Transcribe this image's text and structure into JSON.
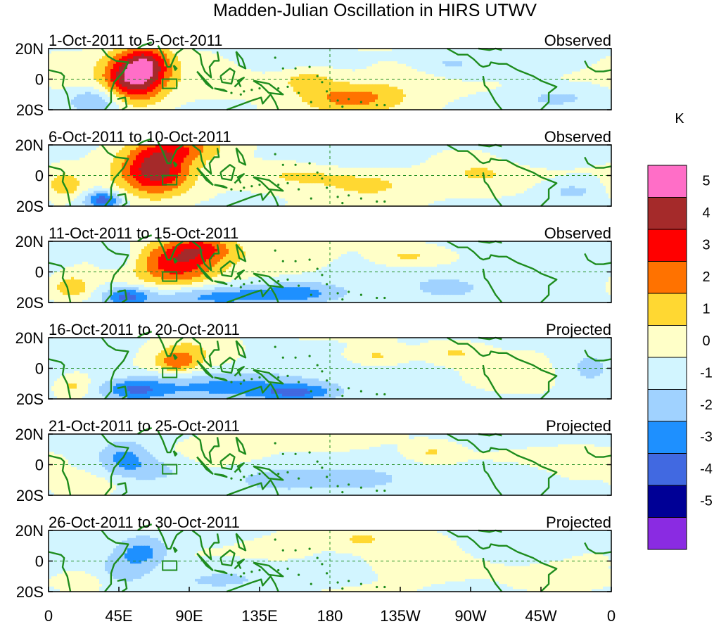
{
  "chart_data": {
    "type": "heatmap",
    "title": "Madden-Julian Oscillation in HIRS UTWV",
    "units_label": "K",
    "y_tick_labels": [
      "20N",
      "0",
      "20S"
    ],
    "x_tick_labels": [
      "0",
      "45E",
      "90E",
      "135E",
      "180",
      "135W",
      "90W",
      "45W",
      "0"
    ],
    "x_range_deg_east": [
      0,
      360
    ],
    "y_range_deg": [
      -20,
      20
    ],
    "colorbar": {
      "levels": [
        "5",
        "4",
        "3",
        "2",
        "1",
        "0",
        "-1",
        "-2",
        "-3",
        "-4",
        "-5"
      ],
      "colors": [
        "#ff6ec7",
        "#a52a2a",
        "#ff0000",
        "#ff7200",
        "#ffd832",
        "#ffffc8",
        "#d2f5ff",
        "#a0d2ff",
        "#1e90ff",
        "#4169e1",
        "#000096",
        "#8a2be2"
      ]
    },
    "panels": [
      {
        "date_range": "1-Oct-2011 to 5-Oct-2011",
        "status": "Observed",
        "anomalies": [
          {
            "lon": 55,
            "lat": 2,
            "sx": 14,
            "sy": 12,
            "v": 5.3
          },
          {
            "lon": 65,
            "lat": 12,
            "sx": 10,
            "sy": 8,
            "v": 2.0
          },
          {
            "lon": 195,
            "lat": -12,
            "sx": 24,
            "sy": 7,
            "v": 2.6
          },
          {
            "lon": 165,
            "lat": 0,
            "sx": 14,
            "sy": 6,
            "v": 1.5
          },
          {
            "lon": 235,
            "lat": 2,
            "sx": 22,
            "sy": 7,
            "v": 0.8
          },
          {
            "lon": 110,
            "lat": 6,
            "sx": 20,
            "sy": 10,
            "v": 0.6
          },
          {
            "lon": 145,
            "lat": 14,
            "sx": 22,
            "sy": 6,
            "v": -1.0
          },
          {
            "lon": 255,
            "lat": 9,
            "sx": 16,
            "sy": 6,
            "v": -1.2
          },
          {
            "lon": 30,
            "lat": -14,
            "sx": 12,
            "sy": 6,
            "v": -2.1
          },
          {
            "lon": 325,
            "lat": -12,
            "sx": 18,
            "sy": 5,
            "v": -1.2
          },
          {
            "lon": 300,
            "lat": 10,
            "sx": 18,
            "sy": 6,
            "v": -0.9
          },
          {
            "lon": 10,
            "lat": 4,
            "sx": 10,
            "sy": 8,
            "v": 0.6
          }
        ]
      },
      {
        "date_range": "6-Oct-2011 to 10-Oct-2011",
        "status": "Observed",
        "anomalies": [
          {
            "lon": 68,
            "lat": 4,
            "sx": 16,
            "sy": 12,
            "v": 4.6
          },
          {
            "lon": 88,
            "lat": 18,
            "sx": 18,
            "sy": 6,
            "v": 2.2
          },
          {
            "lon": 10,
            "lat": -6,
            "sx": 8,
            "sy": 6,
            "v": 2.0
          },
          {
            "lon": 160,
            "lat": 0,
            "sx": 22,
            "sy": 6,
            "v": 1.4
          },
          {
            "lon": 205,
            "lat": -6,
            "sx": 22,
            "sy": 7,
            "v": 1.5
          },
          {
            "lon": 275,
            "lat": 2,
            "sx": 20,
            "sy": 8,
            "v": 1.1
          },
          {
            "lon": 35,
            "lat": -16,
            "sx": 8,
            "sy": 4,
            "v": -3.5
          },
          {
            "lon": 190,
            "lat": 12,
            "sx": 24,
            "sy": 6,
            "v": -0.7
          },
          {
            "lon": 335,
            "lat": -10,
            "sx": 14,
            "sy": 5,
            "v": -1.2
          },
          {
            "lon": 310,
            "lat": 12,
            "sx": 18,
            "sy": 5,
            "v": -0.8
          }
        ]
      },
      {
        "date_range": "11-Oct-2011 to 15-Oct-2011",
        "status": "Observed",
        "anomalies": [
          {
            "lon": 82,
            "lat": 6,
            "sx": 18,
            "sy": 11,
            "v": 3.6
          },
          {
            "lon": 100,
            "lat": 16,
            "sx": 14,
            "sy": 6,
            "v": 2.3
          },
          {
            "lon": 145,
            "lat": 8,
            "sx": 24,
            "sy": 8,
            "v": 0.9
          },
          {
            "lon": 230,
            "lat": 10,
            "sx": 14,
            "sy": 4,
            "v": 1.3
          },
          {
            "lon": 105,
            "lat": -16,
            "sx": 30,
            "sy": 5,
            "v": -2.3
          },
          {
            "lon": 160,
            "lat": -14,
            "sx": 22,
            "sy": 5,
            "v": -2.2
          },
          {
            "lon": 50,
            "lat": -16,
            "sx": 10,
            "sy": 4,
            "v": -3.0
          },
          {
            "lon": 45,
            "lat": 10,
            "sx": 8,
            "sy": 6,
            "v": -1.2
          },
          {
            "lon": 15,
            "lat": -10,
            "sx": 8,
            "sy": 5,
            "v": 2.1
          },
          {
            "lon": 255,
            "lat": -10,
            "sx": 20,
            "sy": 6,
            "v": -1.3
          },
          {
            "lon": 320,
            "lat": 0,
            "sx": 22,
            "sy": 10,
            "v": -0.7
          }
        ]
      },
      {
        "date_range": "16-Oct-2011 to 20-Oct-2011",
        "status": "Projected",
        "anomalies": [
          {
            "lon": 82,
            "lat": 4,
            "sx": 9,
            "sy": 5,
            "v": 2.3
          },
          {
            "lon": 90,
            "lat": 12,
            "sx": 16,
            "sy": 8,
            "v": 1.2
          },
          {
            "lon": 110,
            "lat": -12,
            "sx": 40,
            "sy": 7,
            "v": -2.2
          },
          {
            "lon": 55,
            "lat": -14,
            "sx": 14,
            "sy": 5,
            "v": -2.4
          },
          {
            "lon": 160,
            "lat": -16,
            "sx": 18,
            "sy": 4,
            "v": -2.5
          },
          {
            "lon": 210,
            "lat": 8,
            "sx": 12,
            "sy": 4,
            "v": 1.3
          },
          {
            "lon": 260,
            "lat": 10,
            "sx": 12,
            "sy": 4,
            "v": 1.2
          },
          {
            "lon": 15,
            "lat": -12,
            "sx": 8,
            "sy": 5,
            "v": 1.4
          },
          {
            "lon": 305,
            "lat": -6,
            "sx": 18,
            "sy": 8,
            "v": 0.5
          },
          {
            "lon": 345,
            "lat": 0,
            "sx": 14,
            "sy": 10,
            "v": -1.3
          },
          {
            "lon": 30,
            "lat": 10,
            "sx": 14,
            "sy": 6,
            "v": -0.9
          }
        ]
      },
      {
        "date_range": "21-Oct-2011 to 25-Oct-2011",
        "status": "Projected",
        "anomalies": [
          {
            "lon": 48,
            "lat": 4,
            "sx": 12,
            "sy": 8,
            "v": -2.4
          },
          {
            "lon": 70,
            "lat": -4,
            "sx": 14,
            "sy": 6,
            "v": -1.3
          },
          {
            "lon": 150,
            "lat": -10,
            "sx": 22,
            "sy": 5,
            "v": -1.7
          },
          {
            "lon": 200,
            "lat": -10,
            "sx": 22,
            "sy": 6,
            "v": -1.2
          },
          {
            "lon": 245,
            "lat": 8,
            "sx": 10,
            "sy": 4,
            "v": 1.2
          },
          {
            "lon": 115,
            "lat": 12,
            "sx": 18,
            "sy": 7,
            "v": 0.6
          },
          {
            "lon": 25,
            "lat": -14,
            "sx": 12,
            "sy": 5,
            "v": 0.9
          },
          {
            "lon": 340,
            "lat": 2,
            "sx": 16,
            "sy": 6,
            "v": 0.4
          },
          {
            "lon": 295,
            "lat": -10,
            "sx": 18,
            "sy": 6,
            "v": -0.8
          },
          {
            "lon": 180,
            "lat": 12,
            "sx": 26,
            "sy": 6,
            "v": 0.3
          }
        ]
      },
      {
        "date_range": "26-Oct-2011 to 30-Oct-2011",
        "status": "Projected",
        "anomalies": [
          {
            "lon": 60,
            "lat": 6,
            "sx": 12,
            "sy": 7,
            "v": -2.4
          },
          {
            "lon": 45,
            "lat": -6,
            "sx": 14,
            "sy": 8,
            "v": -1.3
          },
          {
            "lon": 110,
            "lat": -12,
            "sx": 28,
            "sy": 6,
            "v": -1.1
          },
          {
            "lon": 25,
            "lat": -14,
            "sx": 10,
            "sy": 5,
            "v": 0.9
          },
          {
            "lon": 200,
            "lat": 14,
            "sx": 12,
            "sy": 4,
            "v": 1.2
          },
          {
            "lon": 230,
            "lat": 2,
            "sx": 30,
            "sy": 10,
            "v": 0.5
          },
          {
            "lon": 325,
            "lat": -14,
            "sx": 16,
            "sy": 4,
            "v": 1.1
          },
          {
            "lon": 300,
            "lat": 8,
            "sx": 20,
            "sy": 6,
            "v": -0.8
          },
          {
            "lon": 150,
            "lat": 6,
            "sx": 20,
            "sy": 6,
            "v": 0.4
          }
        ]
      }
    ]
  }
}
